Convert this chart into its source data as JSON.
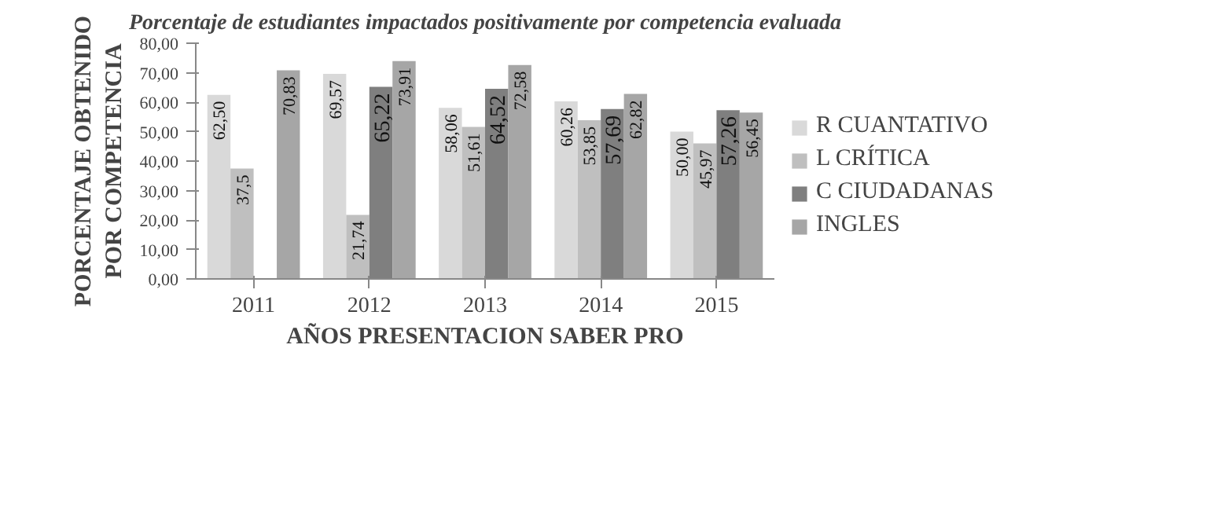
{
  "chart_data": {
    "type": "bar",
    "title": "Porcentaje de estudiantes impactados positivamente por competencia evaluada",
    "xlabel": "AÑOS PRESENTACION SABER PRO",
    "ylabel": "PORCENTAJE OBTENIDO\nPOR COMPETENCIA",
    "categories": [
      "2011",
      "2012",
      "2013",
      "2014",
      "2015"
    ],
    "series": [
      {
        "name": "R CUANTATIVO",
        "color": "#d9d9d9",
        "values": [
          62.5,
          69.57,
          58.06,
          60.26,
          50.0
        ],
        "value_labels": [
          "62,50",
          "69,57",
          "58,06",
          "60,26",
          "50,00"
        ]
      },
      {
        "name": "L CRÍTICA",
        "color": "#bfbfbf",
        "values": [
          37.5,
          21.74,
          51.61,
          53.85,
          45.97
        ],
        "value_labels": [
          "37,5",
          "21,74",
          "51,61",
          "53,85",
          "45,97"
        ]
      },
      {
        "name": "C CIUDADANAS",
        "color": "#7f7f7f",
        "values": [
          null,
          65.22,
          64.52,
          57.69,
          57.26
        ],
        "value_labels": [
          null,
          "65,22",
          "64,52",
          "57,69",
          "57,26"
        ]
      },
      {
        "name": "INGLES",
        "color": "#a6a6a6",
        "values": [
          70.83,
          73.91,
          72.58,
          62.82,
          56.45
        ],
        "value_labels": [
          "70,83",
          "73,91",
          "72,58",
          "62,82",
          "56,45"
        ]
      }
    ],
    "ylim": [
      0,
      80
    ],
    "yticks": [
      {
        "value": 0,
        "label": "0,00"
      },
      {
        "value": 10,
        "label": "10,00"
      },
      {
        "value": 20,
        "label": "20,00"
      },
      {
        "value": 30,
        "label": "30,00"
      },
      {
        "value": 40,
        "label": "40,00"
      },
      {
        "value": 50,
        "label": "50,00"
      },
      {
        "value": 60,
        "label": "60,00"
      },
      {
        "value": 70,
        "label": "70,00"
      },
      {
        "value": 80,
        "label": "80,00"
      }
    ],
    "grid": false,
    "legend": "right"
  }
}
